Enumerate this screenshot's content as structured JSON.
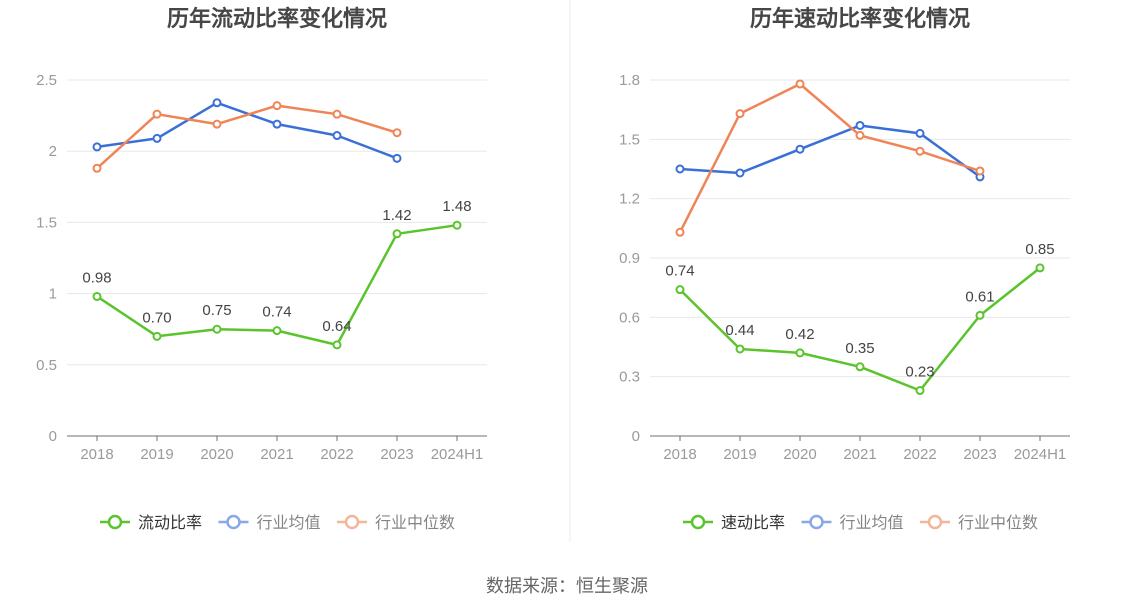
{
  "source": "数据来源：恒生聚源",
  "chart_data": [
    {
      "type": "line",
      "title": "历年流动比率变化情况",
      "categories": [
        "2018",
        "2019",
        "2020",
        "2021",
        "2022",
        "2023",
        "2024H1"
      ],
      "ylim": [
        0,
        2.5
      ],
      "yticks": [
        0,
        0.5,
        1,
        1.5,
        2,
        2.5
      ],
      "grid": true,
      "legend": "bottom",
      "series": [
        {
          "name": "流动比率",
          "color": "#5ac42c",
          "values": [
            0.98,
            0.7,
            0.75,
            0.74,
            0.64,
            1.42,
            1.48
          ],
          "data_labels": true
        },
        {
          "name": "行业均值",
          "color": "#3a6fd8",
          "values": [
            2.03,
            2.09,
            2.34,
            2.19,
            2.11,
            1.95,
            null
          ]
        },
        {
          "name": "行业中位数",
          "color": "#ef8457",
          "values": [
            1.88,
            2.26,
            2.19,
            2.32,
            2.26,
            2.13,
            null
          ]
        }
      ]
    },
    {
      "type": "line",
      "title": "历年速动比率变化情况",
      "categories": [
        "2018",
        "2019",
        "2020",
        "2021",
        "2022",
        "2023",
        "2024H1"
      ],
      "ylim": [
        0,
        1.8
      ],
      "yticks": [
        0,
        0.3,
        0.6,
        0.9,
        1.2,
        1.5,
        1.8
      ],
      "grid": true,
      "legend": "bottom",
      "series": [
        {
          "name": "速动比率",
          "color": "#5ac42c",
          "values": [
            0.74,
            0.44,
            0.42,
            0.35,
            0.23,
            0.61,
            0.85
          ],
          "data_labels": true
        },
        {
          "name": "行业均值",
          "color": "#3a6fd8",
          "values": [
            1.35,
            1.33,
            1.45,
            1.57,
            1.53,
            1.31,
            null
          ]
        },
        {
          "name": "行业中位数",
          "color": "#ef8457",
          "values": [
            1.03,
            1.63,
            1.78,
            1.52,
            1.44,
            1.34,
            null
          ]
        }
      ]
    }
  ]
}
